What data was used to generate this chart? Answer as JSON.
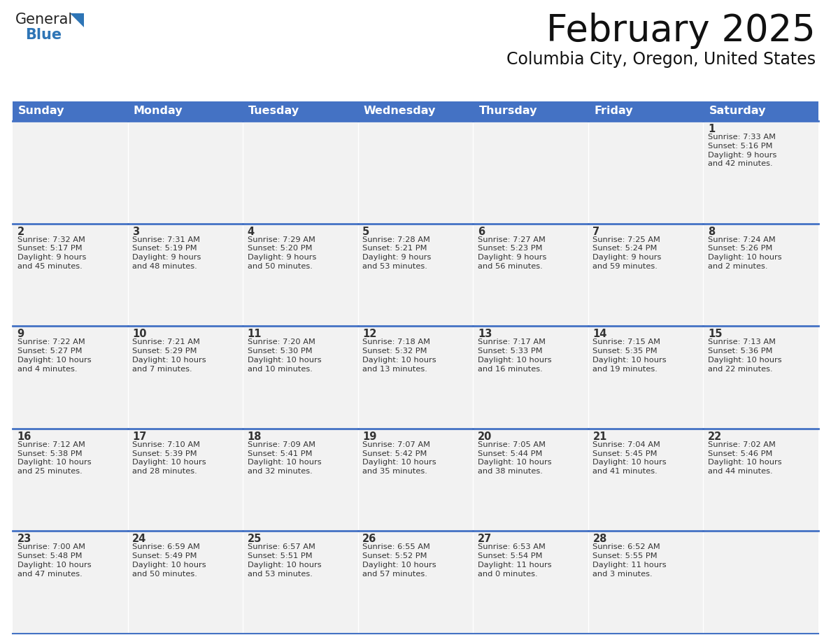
{
  "title": "February 2025",
  "subtitle": "Columbia City, Oregon, United States",
  "header_bg_color": "#4472C4",
  "header_text_color": "#FFFFFF",
  "cell_bg_color": "#F2F2F2",
  "border_color": "#4472C4",
  "border_color_light": "#AAAAAA",
  "text_color": "#333333",
  "days_of_week": [
    "Sunday",
    "Monday",
    "Tuesday",
    "Wednesday",
    "Thursday",
    "Friday",
    "Saturday"
  ],
  "weeks": [
    [
      {
        "day": "",
        "info": ""
      },
      {
        "day": "",
        "info": ""
      },
      {
        "day": "",
        "info": ""
      },
      {
        "day": "",
        "info": ""
      },
      {
        "day": "",
        "info": ""
      },
      {
        "day": "",
        "info": ""
      },
      {
        "day": "1",
        "info": "Sunrise: 7:33 AM\nSunset: 5:16 PM\nDaylight: 9 hours\nand 42 minutes."
      }
    ],
    [
      {
        "day": "2",
        "info": "Sunrise: 7:32 AM\nSunset: 5:17 PM\nDaylight: 9 hours\nand 45 minutes."
      },
      {
        "day": "3",
        "info": "Sunrise: 7:31 AM\nSunset: 5:19 PM\nDaylight: 9 hours\nand 48 minutes."
      },
      {
        "day": "4",
        "info": "Sunrise: 7:29 AM\nSunset: 5:20 PM\nDaylight: 9 hours\nand 50 minutes."
      },
      {
        "day": "5",
        "info": "Sunrise: 7:28 AM\nSunset: 5:21 PM\nDaylight: 9 hours\nand 53 minutes."
      },
      {
        "day": "6",
        "info": "Sunrise: 7:27 AM\nSunset: 5:23 PM\nDaylight: 9 hours\nand 56 minutes."
      },
      {
        "day": "7",
        "info": "Sunrise: 7:25 AM\nSunset: 5:24 PM\nDaylight: 9 hours\nand 59 minutes."
      },
      {
        "day": "8",
        "info": "Sunrise: 7:24 AM\nSunset: 5:26 PM\nDaylight: 10 hours\nand 2 minutes."
      }
    ],
    [
      {
        "day": "9",
        "info": "Sunrise: 7:22 AM\nSunset: 5:27 PM\nDaylight: 10 hours\nand 4 minutes."
      },
      {
        "day": "10",
        "info": "Sunrise: 7:21 AM\nSunset: 5:29 PM\nDaylight: 10 hours\nand 7 minutes."
      },
      {
        "day": "11",
        "info": "Sunrise: 7:20 AM\nSunset: 5:30 PM\nDaylight: 10 hours\nand 10 minutes."
      },
      {
        "day": "12",
        "info": "Sunrise: 7:18 AM\nSunset: 5:32 PM\nDaylight: 10 hours\nand 13 minutes."
      },
      {
        "day": "13",
        "info": "Sunrise: 7:17 AM\nSunset: 5:33 PM\nDaylight: 10 hours\nand 16 minutes."
      },
      {
        "day": "14",
        "info": "Sunrise: 7:15 AM\nSunset: 5:35 PM\nDaylight: 10 hours\nand 19 minutes."
      },
      {
        "day": "15",
        "info": "Sunrise: 7:13 AM\nSunset: 5:36 PM\nDaylight: 10 hours\nand 22 minutes."
      }
    ],
    [
      {
        "day": "16",
        "info": "Sunrise: 7:12 AM\nSunset: 5:38 PM\nDaylight: 10 hours\nand 25 minutes."
      },
      {
        "day": "17",
        "info": "Sunrise: 7:10 AM\nSunset: 5:39 PM\nDaylight: 10 hours\nand 28 minutes."
      },
      {
        "day": "18",
        "info": "Sunrise: 7:09 AM\nSunset: 5:41 PM\nDaylight: 10 hours\nand 32 minutes."
      },
      {
        "day": "19",
        "info": "Sunrise: 7:07 AM\nSunset: 5:42 PM\nDaylight: 10 hours\nand 35 minutes."
      },
      {
        "day": "20",
        "info": "Sunrise: 7:05 AM\nSunset: 5:44 PM\nDaylight: 10 hours\nand 38 minutes."
      },
      {
        "day": "21",
        "info": "Sunrise: 7:04 AM\nSunset: 5:45 PM\nDaylight: 10 hours\nand 41 minutes."
      },
      {
        "day": "22",
        "info": "Sunrise: 7:02 AM\nSunset: 5:46 PM\nDaylight: 10 hours\nand 44 minutes."
      }
    ],
    [
      {
        "day": "23",
        "info": "Sunrise: 7:00 AM\nSunset: 5:48 PM\nDaylight: 10 hours\nand 47 minutes."
      },
      {
        "day": "24",
        "info": "Sunrise: 6:59 AM\nSunset: 5:49 PM\nDaylight: 10 hours\nand 50 minutes."
      },
      {
        "day": "25",
        "info": "Sunrise: 6:57 AM\nSunset: 5:51 PM\nDaylight: 10 hours\nand 53 minutes."
      },
      {
        "day": "26",
        "info": "Sunrise: 6:55 AM\nSunset: 5:52 PM\nDaylight: 10 hours\nand 57 minutes."
      },
      {
        "day": "27",
        "info": "Sunrise: 6:53 AM\nSunset: 5:54 PM\nDaylight: 11 hours\nand 0 minutes."
      },
      {
        "day": "28",
        "info": "Sunrise: 6:52 AM\nSunset: 5:55 PM\nDaylight: 11 hours\nand 3 minutes."
      },
      {
        "day": "",
        "info": ""
      }
    ]
  ],
  "logo_general_color": "#222222",
  "logo_blue_color": "#2E75B6",
  "title_fontsize": 38,
  "subtitle_fontsize": 17,
  "header_fontsize": 11.5,
  "day_num_fontsize": 10.5,
  "info_fontsize": 8.2
}
